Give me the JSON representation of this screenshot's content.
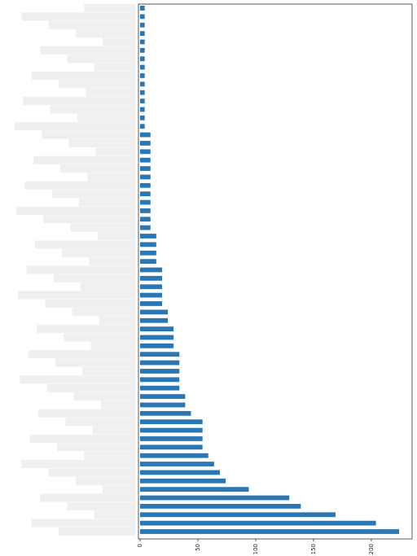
{
  "chart_data": {
    "type": "bar",
    "orientation": "horizontal",
    "title": "",
    "xlabel": "",
    "ylabel": "",
    "xlim": [
      0,
      240
    ],
    "grid": false,
    "legend": "none",
    "bar_color": "#2a77b4",
    "categories": [
      "",
      "",
      "",
      "",
      "",
      "",
      "",
      "",
      "",
      "",
      "",
      "",
      "",
      "",
      "",
      "",
      "",
      "",
      "",
      "",
      "",
      "",
      "",
      "",
      "",
      "",
      "",
      "",
      "",
      "",
      "",
      "",
      "",
      "",
      "",
      "",
      "",
      "",
      "",
      "",
      "",
      "",
      "",
      "",
      "",
      "",
      "",
      "",
      "",
      "",
      "",
      "",
      "",
      "",
      "",
      "",
      "",
      "",
      "",
      "",
      "",
      "",
      ""
    ],
    "values": [
      4,
      4,
      4,
      4,
      4,
      4,
      4,
      4,
      4,
      4,
      4,
      4,
      4,
      4,
      4,
      9,
      9,
      9,
      9,
      9,
      9,
      9,
      9,
      9,
      9,
      9,
      9,
      14,
      14,
      14,
      14,
      19,
      19,
      19,
      19,
      19,
      24,
      24,
      29,
      29,
      29,
      34,
      34,
      34,
      34,
      34,
      39,
      39,
      44,
      54,
      54,
      54,
      54,
      59,
      64,
      69,
      74,
      94,
      129,
      139,
      169,
      204,
      224
    ],
    "ticks": [
      {
        "value": 0,
        "label": "0"
      },
      {
        "value": 50,
        "label": "50"
      },
      {
        "value": 100,
        "label": "100"
      },
      {
        "value": 150,
        "label": "150"
      },
      {
        "value": 200,
        "label": "200"
      }
    ]
  }
}
